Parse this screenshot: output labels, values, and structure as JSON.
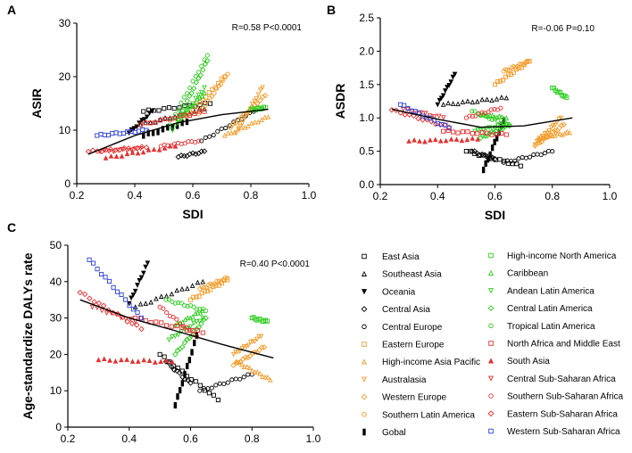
{
  "legend": [
    {
      "name": "East Asia",
      "color": "#000000",
      "marker": "square-open"
    },
    {
      "name": "Southeast Asia",
      "color": "#000000",
      "marker": "triangle-open"
    },
    {
      "name": "Oceania",
      "color": "#000000",
      "marker": "triangle-down-filled"
    },
    {
      "name": "Central Asia",
      "color": "#000000",
      "marker": "diamond-open"
    },
    {
      "name": "Central Europe",
      "color": "#000000",
      "marker": "circle-open"
    },
    {
      "name": "Eastern Europe",
      "color": "#f39c2b",
      "marker": "square-open"
    },
    {
      "name": "High-income Asia Pacific",
      "color": "#f39c2b",
      "marker": "triangle-open"
    },
    {
      "name": "Australasia",
      "color": "#f39c2b",
      "marker": "triangle-down-open"
    },
    {
      "name": "Western Europe",
      "color": "#f39c2b",
      "marker": "diamond-open"
    },
    {
      "name": "Southern Latin America",
      "color": "#f39c2b",
      "marker": "circle-open"
    },
    {
      "name": "Gobal",
      "color": "#000000",
      "marker": "bar-filled"
    },
    {
      "name": "High-income North America",
      "color": "#2ecc1f",
      "marker": "square-open"
    },
    {
      "name": "Caribbean",
      "color": "#2ecc1f",
      "marker": "triangle-open"
    },
    {
      "name": "Andean Latin America",
      "color": "#2ecc1f",
      "marker": "triangle-down-open"
    },
    {
      "name": "Central Latin America",
      "color": "#2ecc1f",
      "marker": "diamond-open"
    },
    {
      "name": "Tropical Latin America",
      "color": "#2ecc1f",
      "marker": "circle-open"
    },
    {
      "name": "North Africa and Middle East",
      "color": "#e53030",
      "marker": "square-open"
    },
    {
      "name": "South Asia",
      "color": "#e53030",
      "marker": "triangle-filled"
    },
    {
      "name": "Central Sub-Saharan Africa",
      "color": "#e53030",
      "marker": "triangle-down-open"
    },
    {
      "name": "Southern Sub-Saharan Africa",
      "color": "#e53030",
      "marker": "circle-open"
    },
    {
      "name": "Eastern Sub-Saharan Africa",
      "color": "#e53030",
      "marker": "diamond-open"
    },
    {
      "name": "Western Sub-Saharan Africa",
      "color": "#2b3fd6",
      "marker": "square-open"
    }
  ],
  "chart_data": [
    {
      "panel": "A",
      "type": "scatter",
      "xlabel": "SDI",
      "ylabel": "ASIR",
      "xlim": [
        0.2,
        1.0
      ],
      "ylim": [
        0,
        30
      ],
      "xticks": [
        "0.2",
        "0.4",
        "0.6",
        "0.8",
        "1.0"
      ],
      "yticks": [
        "0",
        "10",
        "20",
        "30"
      ],
      "stat": "R=0.58  P<0.0001",
      "trend": [
        [
          0.24,
          5.5
        ],
        [
          0.4,
          9.0
        ],
        [
          0.55,
          11.4
        ],
        [
          0.7,
          12.9
        ],
        [
          0.86,
          13.9
        ]
      ],
      "series": [
        {
          "name": "East Asia",
          "start": [
            0.43,
            13.5
          ],
          "end": [
            0.66,
            15.0
          ],
          "n": 14
        },
        {
          "name": "Southeast Asia",
          "start": [
            0.42,
            11.0
          ],
          "end": [
            0.64,
            14.0
          ],
          "n": 14
        },
        {
          "name": "Oceania",
          "start": [
            0.38,
            9.5
          ],
          "end": [
            0.46,
            13.5
          ],
          "n": 10
        },
        {
          "name": "Central Asia",
          "start": [
            0.55,
            5.0
          ],
          "end": [
            0.64,
            6.0
          ],
          "n": 10
        },
        {
          "name": "Central Europe",
          "start": [
            0.63,
            8.0
          ],
          "end": [
            0.81,
            13.5
          ],
          "n": 14
        },
        {
          "name": "Eastern Europe",
          "start": [
            0.57,
            12.0
          ],
          "end": [
            0.71,
            20.0
          ],
          "n": 14
        },
        {
          "name": "High-income Asia Pacific",
          "start": [
            0.71,
            9.0
          ],
          "end": [
            0.86,
            12.5
          ],
          "n": 14
        },
        {
          "name": "Australasia",
          "start": [
            0.75,
            9.5
          ],
          "end": [
            0.84,
            18.0
          ],
          "n": 14
        },
        {
          "name": "Western Europe",
          "start": [
            0.73,
            10.5
          ],
          "end": [
            0.85,
            16.5
          ],
          "n": 14
        },
        {
          "name": "Southern Latin America",
          "start": [
            0.62,
            13.0
          ],
          "end": [
            0.72,
            20.5
          ],
          "n": 14
        },
        {
          "name": "Gobal",
          "start": [
            0.43,
            9.0
          ],
          "end": [
            0.58,
            11.5
          ],
          "n": 10
        },
        {
          "name": "High-income North America",
          "start": [
            0.8,
            13.8
          ],
          "end": [
            0.85,
            14.2
          ],
          "n": 10
        },
        {
          "name": "Caribbean",
          "start": [
            0.55,
            12.0
          ],
          "end": [
            0.64,
            17.0
          ],
          "n": 12
        },
        {
          "name": "Andean Latin America",
          "start": [
            0.53,
            10.0
          ],
          "end": [
            0.64,
            18.0
          ],
          "n": 12
        },
        {
          "name": "Central Latin America",
          "start": [
            0.55,
            12.0
          ],
          "end": [
            0.65,
            23.0
          ],
          "n": 14
        },
        {
          "name": "Tropical Latin America",
          "start": [
            0.52,
            11.0
          ],
          "end": [
            0.65,
            24.0
          ],
          "n": 14
        },
        {
          "name": "North Africa and Middle East",
          "start": [
            0.42,
            11.0
          ],
          "end": [
            0.64,
            13.5
          ],
          "n": 14
        },
        {
          "name": "South Asia",
          "start": [
            0.3,
            4.8
          ],
          "end": [
            0.54,
            7.0
          ],
          "n": 14
        },
        {
          "name": "Central Sub-Saharan Africa",
          "start": [
            0.28,
            6.0
          ],
          "end": [
            0.42,
            6.5
          ],
          "n": 10
        },
        {
          "name": "Southern Sub-Saharan Africa",
          "start": [
            0.49,
            7.0
          ],
          "end": [
            0.62,
            8.0
          ],
          "n": 12
        },
        {
          "name": "Eastern Sub-Saharan Africa",
          "start": [
            0.24,
            6.0
          ],
          "end": [
            0.44,
            6.8
          ],
          "n": 14
        },
        {
          "name": "Western Sub-Saharan Africa",
          "start": [
            0.27,
            9.0
          ],
          "end": [
            0.44,
            10.0
          ],
          "n": 14
        }
      ]
    },
    {
      "panel": "B",
      "type": "scatter",
      "xlabel": "SDI",
      "ylabel": "ASDR",
      "xlim": [
        0.2,
        1.0
      ],
      "ylim": [
        0,
        2.5
      ],
      "xticks": [
        "0.2",
        "0.4",
        "0.6",
        "0.8",
        "1.0"
      ],
      "yticks": [
        "0.0",
        "0.5",
        "1.0",
        "1.5",
        "2.0",
        "2.5"
      ],
      "stat": "R=-0.06  P=0.10",
      "trend": [
        [
          0.24,
          1.13
        ],
        [
          0.4,
          0.98
        ],
        [
          0.55,
          0.86
        ],
        [
          0.7,
          0.88
        ],
        [
          0.87,
          1.0
        ]
      ],
      "series": [
        {
          "name": "East Asia",
          "start": [
            0.5,
            0.5
          ],
          "end": [
            0.69,
            0.28
          ],
          "n": 14
        },
        {
          "name": "Southeast Asia",
          "start": [
            0.42,
            1.2
          ],
          "end": [
            0.64,
            1.3
          ],
          "n": 14
        },
        {
          "name": "Oceania",
          "start": [
            0.4,
            1.2
          ],
          "end": [
            0.46,
            1.65
          ],
          "n": 10
        },
        {
          "name": "Central Asia",
          "start": [
            0.52,
            0.5
          ],
          "end": [
            0.6,
            0.38
          ],
          "n": 10
        },
        {
          "name": "Central Europe",
          "start": [
            0.63,
            0.33
          ],
          "end": [
            0.8,
            0.5
          ],
          "n": 14
        },
        {
          "name": "Eastern Europe",
          "start": [
            0.6,
            1.5
          ],
          "end": [
            0.72,
            1.85
          ],
          "n": 14
        },
        {
          "name": "High-income Asia Pacific",
          "start": [
            0.75,
            0.7
          ],
          "end": [
            0.86,
            0.78
          ],
          "n": 14
        },
        {
          "name": "Australasia",
          "start": [
            0.74,
            0.6
          ],
          "end": [
            0.83,
            1.0
          ],
          "n": 14
        },
        {
          "name": "Western Europe",
          "start": [
            0.74,
            0.58
          ],
          "end": [
            0.84,
            0.9
          ],
          "n": 14
        },
        {
          "name": "Southern Latin America",
          "start": [
            0.63,
            1.7
          ],
          "end": [
            0.72,
            1.85
          ],
          "n": 14
        },
        {
          "name": "Gobal",
          "start": [
            0.56,
            0.22
          ],
          "end": [
            0.63,
            0.95
          ],
          "n": 10
        },
        {
          "name": "High-income North America",
          "start": [
            0.8,
            1.45
          ],
          "end": [
            0.85,
            1.3
          ],
          "n": 10
        },
        {
          "name": "Caribbean",
          "start": [
            0.55,
            1.05
          ],
          "end": [
            0.64,
            1.0
          ],
          "n": 12
        },
        {
          "name": "Andean Latin America",
          "start": [
            0.53,
            0.8
          ],
          "end": [
            0.64,
            0.9
          ],
          "n": 12
        },
        {
          "name": "Central Latin America",
          "start": [
            0.55,
            0.7
          ],
          "end": [
            0.65,
            0.9
          ],
          "n": 14
        },
        {
          "name": "Tropical Latin America",
          "start": [
            0.52,
            1.1
          ],
          "end": [
            0.65,
            0.88
          ],
          "n": 14
        },
        {
          "name": "North Africa and Middle East",
          "start": [
            0.42,
            0.8
          ],
          "end": [
            0.64,
            0.75
          ],
          "n": 14
        },
        {
          "name": "South Asia",
          "start": [
            0.3,
            0.65
          ],
          "end": [
            0.54,
            0.68
          ],
          "n": 14
        },
        {
          "name": "Central Sub-Saharan Africa",
          "start": [
            0.28,
            1.13
          ],
          "end": [
            0.42,
            1.0
          ],
          "n": 10
        },
        {
          "name": "Southern Sub-Saharan Africa",
          "start": [
            0.5,
            1.0
          ],
          "end": [
            0.62,
            1.15
          ],
          "n": 12
        },
        {
          "name": "Eastern Sub-Saharan Africa",
          "start": [
            0.24,
            1.12
          ],
          "end": [
            0.44,
            0.86
          ],
          "n": 14
        },
        {
          "name": "Western Sub-Saharan Africa",
          "start": [
            0.27,
            1.2
          ],
          "end": [
            0.44,
            0.85
          ],
          "n": 14
        }
      ]
    },
    {
      "panel": "C",
      "type": "scatter",
      "xlabel": "SDI",
      "ylabel": "Age-standardize DALYs rate",
      "xlim": [
        0.2,
        1.0
      ],
      "ylim": [
        0,
        50
      ],
      "xticks": [
        "0.2",
        "0.4",
        "0.6",
        "0.8",
        "1.0"
      ],
      "yticks": [
        "0",
        "10",
        "20",
        "30",
        "40",
        "50"
      ],
      "stat": "R=0.40  P<0.0001",
      "trend": [
        [
          0.24,
          35.0
        ],
        [
          0.4,
          30.0
        ],
        [
          0.55,
          26.5
        ],
        [
          0.7,
          22.8
        ],
        [
          0.87,
          19.0
        ]
      ],
      "series": [
        {
          "name": "East Asia",
          "start": [
            0.5,
            20.0
          ],
          "end": [
            0.69,
            7.5
          ],
          "n": 14
        },
        {
          "name": "Southeast Asia",
          "start": [
            0.42,
            33.0
          ],
          "end": [
            0.64,
            40.0
          ],
          "n": 14
        },
        {
          "name": "Oceania",
          "start": [
            0.4,
            34.0
          ],
          "end": [
            0.46,
            45.0
          ],
          "n": 10
        },
        {
          "name": "Central Asia",
          "start": [
            0.52,
            18.0
          ],
          "end": [
            0.6,
            12.0
          ],
          "n": 10
        },
        {
          "name": "Central Europe",
          "start": [
            0.63,
            10.0
          ],
          "end": [
            0.8,
            14.5
          ],
          "n": 14
        },
        {
          "name": "Eastern Europe",
          "start": [
            0.6,
            35.0
          ],
          "end": [
            0.72,
            40.5
          ],
          "n": 14
        },
        {
          "name": "High-income Asia Pacific",
          "start": [
            0.75,
            18.0
          ],
          "end": [
            0.86,
            13.0
          ],
          "n": 14
        },
        {
          "name": "Australasia",
          "start": [
            0.74,
            20.0
          ],
          "end": [
            0.83,
            25.0
          ],
          "n": 14
        },
        {
          "name": "Western Europe",
          "start": [
            0.74,
            17.0
          ],
          "end": [
            0.84,
            22.0
          ],
          "n": 14
        },
        {
          "name": "Southern Latin America",
          "start": [
            0.63,
            38.0
          ],
          "end": [
            0.72,
            41.0
          ],
          "n": 14
        },
        {
          "name": "Gobal",
          "start": [
            0.55,
            6.0
          ],
          "end": [
            0.62,
            25.0
          ],
          "n": 10
        },
        {
          "name": "High-income North America",
          "start": [
            0.8,
            30.0
          ],
          "end": [
            0.85,
            29.0
          ],
          "n": 10
        },
        {
          "name": "Caribbean",
          "start": [
            0.55,
            28.0
          ],
          "end": [
            0.64,
            32.0
          ],
          "n": 12
        },
        {
          "name": "Andean Latin America",
          "start": [
            0.53,
            24.0
          ],
          "end": [
            0.64,
            30.0
          ],
          "n": 12
        },
        {
          "name": "Central Latin America",
          "start": [
            0.55,
            20.0
          ],
          "end": [
            0.65,
            30.0
          ],
          "n": 14
        },
        {
          "name": "Tropical Latin America",
          "start": [
            0.52,
            35.0
          ],
          "end": [
            0.65,
            32.0
          ],
          "n": 14
        },
        {
          "name": "North Africa and Middle East",
          "start": [
            0.42,
            30.0
          ],
          "end": [
            0.64,
            26.0
          ],
          "n": 14
        },
        {
          "name": "South Asia",
          "start": [
            0.3,
            18.5
          ],
          "end": [
            0.54,
            18.0
          ],
          "n": 14
        },
        {
          "name": "Central Sub-Saharan Africa",
          "start": [
            0.28,
            33.0
          ],
          "end": [
            0.42,
            29.0
          ],
          "n": 10
        },
        {
          "name": "Southern Sub-Saharan Africa",
          "start": [
            0.5,
            33.0
          ],
          "end": [
            0.62,
            25.0
          ],
          "n": 12
        },
        {
          "name": "Eastern Sub-Saharan Africa",
          "start": [
            0.24,
            37.0
          ],
          "end": [
            0.44,
            27.0
          ],
          "n": 14
        },
        {
          "name": "Western Sub-Saharan Africa",
          "start": [
            0.27,
            46.0
          ],
          "end": [
            0.44,
            30.0
          ],
          "n": 14
        }
      ]
    }
  ]
}
